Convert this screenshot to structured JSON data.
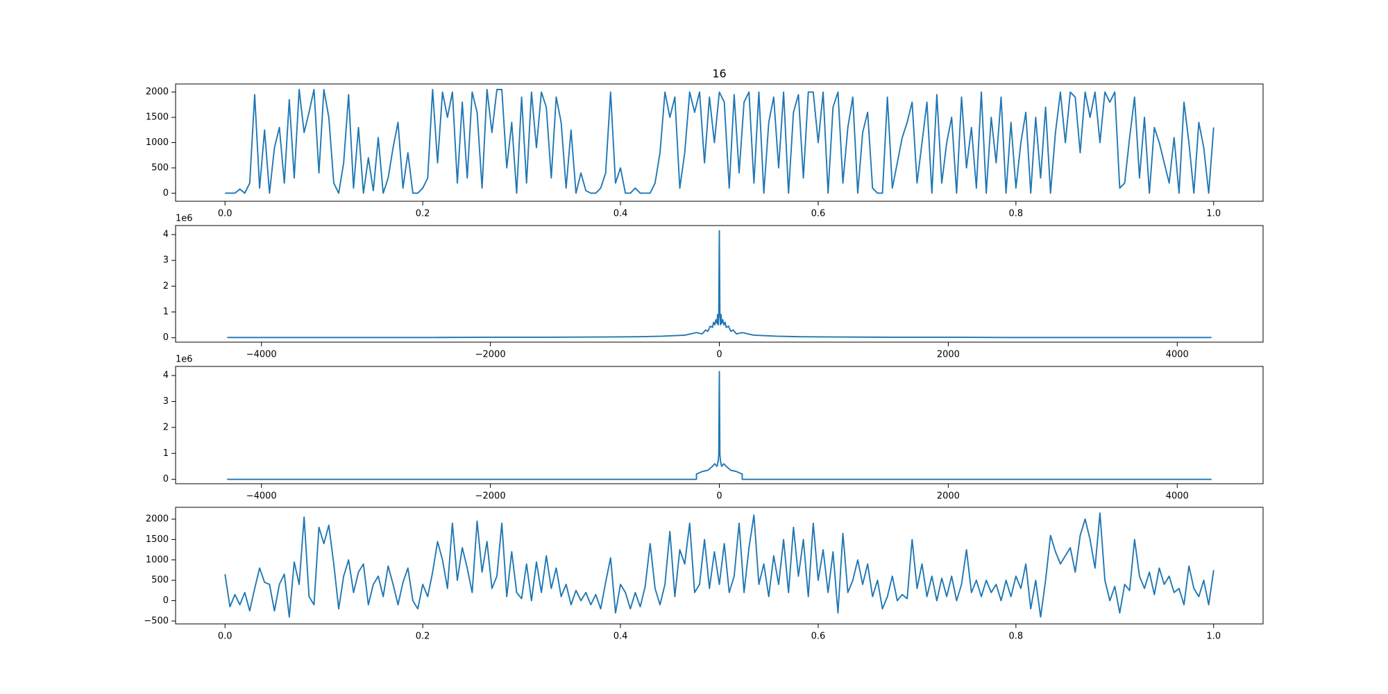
{
  "chart_data": [
    {
      "type": "line",
      "title": "16",
      "color": "#1f77b4",
      "xlim": [
        -0.05,
        1.05
      ],
      "ylim": [
        -160,
        2160
      ],
      "xticks": [
        {
          "value": 0,
          "label": "0.0"
        },
        0.2,
        0.4,
        0.6,
        0.8,
        {
          "value": 1,
          "label": "1.0"
        }
      ],
      "yticks": [
        0,
        500,
        1000,
        1500,
        2000
      ],
      "x": [
        0,
        0.005,
        0.01,
        0.015,
        0.02,
        0.025,
        0.03,
        0.035,
        0.04,
        0.045,
        0.05,
        0.055,
        0.06,
        0.065,
        0.07,
        0.075,
        0.08,
        0.085,
        0.09,
        0.095,
        0.1,
        0.105,
        0.11,
        0.115,
        0.12,
        0.125,
        0.13,
        0.135,
        0.14,
        0.145,
        0.15,
        0.155,
        0.16,
        0.165,
        0.17,
        0.175,
        0.18,
        0.185,
        0.19,
        0.195,
        0.2,
        0.205,
        0.21,
        0.215,
        0.22,
        0.225,
        0.23,
        0.235,
        0.24,
        0.245,
        0.25,
        0.255,
        0.26,
        0.265,
        0.27,
        0.275,
        0.28,
        0.285,
        0.29,
        0.295,
        0.3,
        0.305,
        0.31,
        0.315,
        0.32,
        0.325,
        0.33,
        0.335,
        0.34,
        0.345,
        0.35,
        0.355,
        0.36,
        0.365,
        0.37,
        0.375,
        0.38,
        0.385,
        0.39,
        0.395,
        0.4,
        0.405,
        0.41,
        0.415,
        0.42,
        0.425,
        0.43,
        0.435,
        0.44,
        0.445,
        0.45,
        0.455,
        0.46,
        0.465,
        0.47,
        0.475,
        0.48,
        0.485,
        0.49,
        0.495,
        0.5,
        0.505,
        0.51,
        0.515,
        0.52,
        0.525,
        0.53,
        0.535,
        0.54,
        0.545,
        0.55,
        0.555,
        0.56,
        0.565,
        0.57,
        0.575,
        0.58,
        0.585,
        0.59,
        0.595,
        0.6,
        0.605,
        0.61,
        0.615,
        0.62,
        0.625,
        0.63,
        0.635,
        0.64,
        0.645,
        0.65,
        0.655,
        0.66,
        0.665,
        0.67,
        0.675,
        0.68,
        0.685,
        0.69,
        0.695,
        0.7,
        0.705,
        0.71,
        0.715,
        0.72,
        0.725,
        0.73,
        0.735,
        0.74,
        0.745,
        0.75,
        0.755,
        0.76,
        0.765,
        0.77,
        0.775,
        0.78,
        0.785,
        0.79,
        0.795,
        0.8,
        0.805,
        0.81,
        0.815,
        0.82,
        0.825,
        0.83,
        0.835,
        0.84,
        0.845,
        0.85,
        0.855,
        0.86,
        0.865,
        0.87,
        0.875,
        0.88,
        0.885,
        0.89,
        0.895,
        0.9,
        0.905,
        0.91,
        0.915,
        0.92,
        0.925,
        0.93,
        0.935,
        0.94,
        0.945,
        0.95,
        0.955,
        0.96,
        0.965,
        0.97,
        0.975,
        0.98,
        0.985,
        0.99,
        0.995,
        1
      ],
      "values": [
        0,
        0,
        0,
        80,
        0,
        200,
        1950,
        100,
        1250,
        0,
        900,
        1300,
        200,
        1850,
        300,
        2050,
        1200,
        1600,
        2050,
        400,
        2050,
        1500,
        200,
        0,
        600,
        1950,
        100,
        1300,
        0,
        700,
        50,
        1100,
        0,
        300,
        900,
        1400,
        100,
        800,
        0,
        0,
        100,
        300,
        2050,
        600,
        2000,
        1500,
        2000,
        200,
        1800,
        300,
        2000,
        1600,
        100,
        2050,
        1200,
        2050,
        2050,
        500,
        1400,
        0,
        1900,
        200,
        2000,
        900,
        2000,
        1700,
        300,
        1900,
        1400,
        100,
        1250,
        0,
        400,
        50,
        0,
        0,
        100,
        400,
        2000,
        200,
        500,
        0,
        0,
        100,
        0,
        0,
        0,
        200,
        800,
        2000,
        1500,
        1900,
        100,
        800,
        2000,
        1600,
        2000,
        600,
        1900,
        1000,
        2000,
        1800,
        100,
        1950,
        400,
        1800,
        2000,
        200,
        2000,
        0,
        1400,
        1900,
        500,
        2000,
        0,
        1600,
        1950,
        300,
        2000,
        2000,
        1000,
        2000,
        0,
        1700,
        2000,
        200,
        1300,
        1900,
        0,
        1200,
        1600,
        100,
        0,
        0,
        1900,
        100,
        600,
        1100,
        1400,
        1800,
        200,
        1000,
        1800,
        0,
        1950,
        200,
        1000,
        1500,
        0,
        1900,
        500,
        1300,
        100,
        2000,
        0,
        1500,
        600,
        1900,
        0,
        1400,
        100,
        1000,
        1600,
        0,
        1500,
        300,
        1700,
        0,
        1200,
        2000,
        1000,
        2000,
        1900,
        800,
        2000,
        1500,
        2000,
        1000,
        2000,
        1800,
        2000,
        100,
        200,
        1100,
        1900,
        300,
        1500,
        0,
        1300,
        1000,
        600,
        200,
        1100,
        0,
        1800,
        1000,
        0,
        1400,
        900,
        0,
        1300
      ]
    },
    {
      "type": "line",
      "color": "#1f77b4",
      "offset_text": "1e6",
      "xlim": [
        -4750,
        4750
      ],
      "ylim": [
        -0.17,
        4.35
      ],
      "xticks": [
        {
          "value": -4000,
          "label": "−4000"
        },
        {
          "value": -2000,
          "label": "−2000"
        },
        0,
        2000,
        4000
      ],
      "yticks": [
        0,
        1,
        2,
        3,
        4
      ],
      "x": [
        -4300,
        -4000,
        -3500,
        -3000,
        -2500,
        -2000,
        -1500,
        -1000,
        -700,
        -500,
        -400,
        -300,
        -250,
        -200,
        -150,
        -120,
        -100,
        -80,
        -60,
        -50,
        -40,
        -30,
        -20,
        -15,
        -10,
        -5,
        0,
        5,
        10,
        15,
        20,
        30,
        40,
        50,
        60,
        80,
        100,
        120,
        150,
        200,
        250,
        300,
        400,
        500,
        700,
        1000,
        1500,
        2000,
        2500,
        3000,
        3500,
        4000,
        4300
      ],
      "values": [
        0.01,
        0.01,
        0.01,
        0.01,
        0.01,
        0.02,
        0.02,
        0.03,
        0.04,
        0.06,
        0.08,
        0.1,
        0.15,
        0.2,
        0.15,
        0.3,
        0.25,
        0.45,
        0.4,
        0.6,
        0.5,
        0.7,
        0.55,
        0.9,
        0.5,
        0.95,
        4.15,
        0.95,
        0.5,
        0.9,
        0.55,
        0.7,
        0.5,
        0.6,
        0.4,
        0.45,
        0.25,
        0.3,
        0.15,
        0.2,
        0.15,
        0.1,
        0.08,
        0.06,
        0.04,
        0.03,
        0.02,
        0.02,
        0.01,
        0.01,
        0.01,
        0.01,
        0.01
      ]
    },
    {
      "type": "line",
      "color": "#1f77b4",
      "offset_text": "1e6",
      "xlim": [
        -4750,
        4750
      ],
      "ylim": [
        -0.17,
        4.35
      ],
      "xticks": [
        {
          "value": -4000,
          "label": "−4000"
        },
        {
          "value": -2000,
          "label": "−2000"
        },
        0,
        2000,
        4000
      ],
      "yticks": [
        0,
        1,
        2,
        3,
        4
      ],
      "x": [
        -4300,
        -200,
        -200,
        -150,
        -100,
        -60,
        -40,
        -20,
        -10,
        -5,
        0,
        5,
        10,
        20,
        40,
        60,
        100,
        150,
        200,
        200,
        4300
      ],
      "values": [
        0,
        0,
        0.2,
        0.3,
        0.35,
        0.5,
        0.6,
        0.5,
        0.7,
        0.95,
        4.15,
        0.95,
        0.7,
        0.5,
        0.6,
        0.5,
        0.35,
        0.3,
        0.2,
        0,
        0
      ]
    },
    {
      "type": "line",
      "color": "#1f77b4",
      "xlim": [
        -0.05,
        1.05
      ],
      "ylim": [
        -570,
        2290
      ],
      "xticks": [
        {
          "value": 0,
          "label": "0.0"
        },
        0.2,
        0.4,
        0.6,
        0.8,
        {
          "value": 1,
          "label": "1.0"
        }
      ],
      "yticks": [
        {
          "value": -500,
          "label": "−500"
        },
        0,
        500,
        1000,
        1500,
        2000
      ],
      "x": [
        0,
        0.005,
        0.01,
        0.015,
        0.02,
        0.025,
        0.03,
        0.035,
        0.04,
        0.045,
        0.05,
        0.055,
        0.06,
        0.065,
        0.07,
        0.075,
        0.08,
        0.085,
        0.09,
        0.095,
        0.1,
        0.105,
        0.11,
        0.115,
        0.12,
        0.125,
        0.13,
        0.135,
        0.14,
        0.145,
        0.15,
        0.155,
        0.16,
        0.165,
        0.17,
        0.175,
        0.18,
        0.185,
        0.19,
        0.195,
        0.2,
        0.205,
        0.21,
        0.215,
        0.22,
        0.225,
        0.23,
        0.235,
        0.24,
        0.245,
        0.25,
        0.255,
        0.26,
        0.265,
        0.27,
        0.275,
        0.28,
        0.285,
        0.29,
        0.295,
        0.3,
        0.305,
        0.31,
        0.315,
        0.32,
        0.325,
        0.33,
        0.335,
        0.34,
        0.345,
        0.35,
        0.355,
        0.36,
        0.365,
        0.37,
        0.375,
        0.38,
        0.385,
        0.39,
        0.395,
        0.4,
        0.405,
        0.41,
        0.415,
        0.42,
        0.425,
        0.43,
        0.435,
        0.44,
        0.445,
        0.45,
        0.455,
        0.46,
        0.465,
        0.47,
        0.475,
        0.48,
        0.485,
        0.49,
        0.495,
        0.5,
        0.505,
        0.51,
        0.515,
        0.52,
        0.525,
        0.53,
        0.535,
        0.54,
        0.545,
        0.55,
        0.555,
        0.56,
        0.565,
        0.57,
        0.575,
        0.58,
        0.585,
        0.59,
        0.595,
        0.6,
        0.605,
        0.61,
        0.615,
        0.62,
        0.625,
        0.63,
        0.635,
        0.64,
        0.645,
        0.65,
        0.655,
        0.66,
        0.665,
        0.67,
        0.675,
        0.68,
        0.685,
        0.69,
        0.695,
        0.7,
        0.705,
        0.71,
        0.715,
        0.72,
        0.725,
        0.73,
        0.735,
        0.74,
        0.745,
        0.75,
        0.755,
        0.76,
        0.765,
        0.77,
        0.775,
        0.78,
        0.785,
        0.79,
        0.795,
        0.8,
        0.805,
        0.81,
        0.815,
        0.82,
        0.825,
        0.83,
        0.835,
        0.84,
        0.845,
        0.85,
        0.855,
        0.86,
        0.865,
        0.87,
        0.875,
        0.88,
        0.885,
        0.89,
        0.895,
        0.9,
        0.905,
        0.91,
        0.915,
        0.92,
        0.925,
        0.93,
        0.935,
        0.94,
        0.945,
        0.95,
        0.955,
        0.96,
        0.965,
        0.97,
        0.975,
        0.98,
        0.985,
        0.99,
        0.995,
        1
      ],
      "values": [
        650,
        -150,
        150,
        -100,
        200,
        -250,
        300,
        800,
        450,
        400,
        -250,
        400,
        650,
        -400,
        950,
        400,
        2050,
        100,
        -100,
        1800,
        1400,
        1850,
        900,
        -200,
        600,
        1000,
        200,
        700,
        900,
        -100,
        400,
        600,
        100,
        850,
        400,
        -100,
        450,
        800,
        0,
        -200,
        400,
        100,
        700,
        1450,
        1000,
        300,
        1900,
        500,
        1300,
        800,
        200,
        1950,
        700,
        1450,
        300,
        600,
        1900,
        100,
        1200,
        200,
        50,
        900,
        0,
        950,
        200,
        1100,
        300,
        800,
        100,
        400,
        -100,
        250,
        0,
        200,
        -100,
        150,
        -200,
        450,
        1050,
        -300,
        400,
        200,
        -200,
        200,
        -150,
        350,
        1400,
        300,
        -100,
        400,
        1700,
        100,
        1250,
        900,
        1900,
        200,
        400,
        1500,
        300,
        1200,
        400,
        1400,
        200,
        600,
        1900,
        200,
        1300,
        2100,
        400,
        900,
        100,
        1100,
        400,
        1500,
        200,
        1800,
        600,
        1500,
        100,
        1900,
        500,
        1250,
        200,
        1200,
        -300,
        1650,
        200,
        500,
        1000,
        400,
        900,
        100,
        500,
        -200,
        100,
        600,
        0,
        150,
        50,
        1500,
        300,
        900,
        100,
        600,
        0,
        550,
        100,
        600,
        0,
        400,
        1250,
        200,
        500,
        100,
        500,
        200,
        400,
        0,
        500,
        100,
        600,
        300,
        900,
        -200,
        500,
        -400,
        500,
        1600,
        1200,
        900,
        1100,
        1300,
        700,
        1600,
        2000,
        1500,
        800,
        2150,
        500,
        0,
        350,
        -300,
        400,
        250,
        1500,
        600,
        300,
        700,
        150,
        800,
        400,
        600,
        200,
        300,
        -100,
        850,
        300,
        100,
        500,
        -100,
        750
      ]
    }
  ]
}
